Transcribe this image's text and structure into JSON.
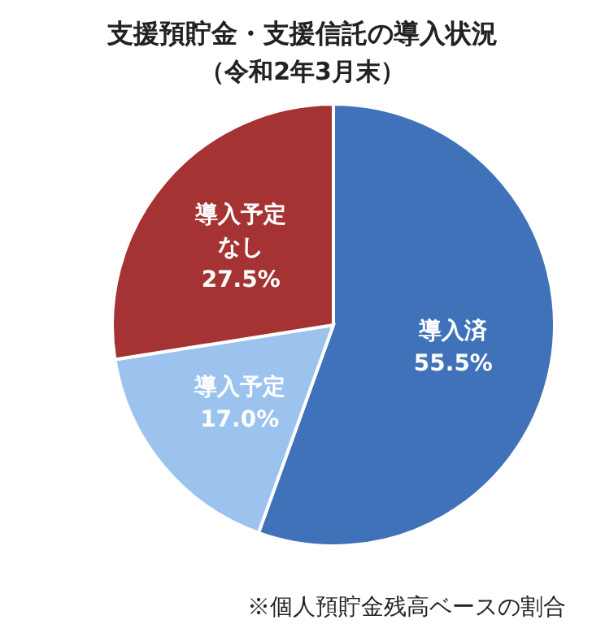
{
  "chart_data": {
    "type": "pie",
    "title": "支援預貯金・支援信託の導入状況",
    "subtitle": "（令和2年3月末）",
    "categories": [
      "導入済",
      "導入予定",
      "導入予定なし"
    ],
    "values": [
      55.5,
      17.0,
      27.5
    ],
    "value_labels": [
      "55.5%",
      "17.0%",
      "27.5%"
    ],
    "colors": [
      "#3f72b8",
      "#9cc2ee",
      "#a63333"
    ],
    "annotations": [
      "※個人預貯金残高ベースの割合"
    ]
  }
}
